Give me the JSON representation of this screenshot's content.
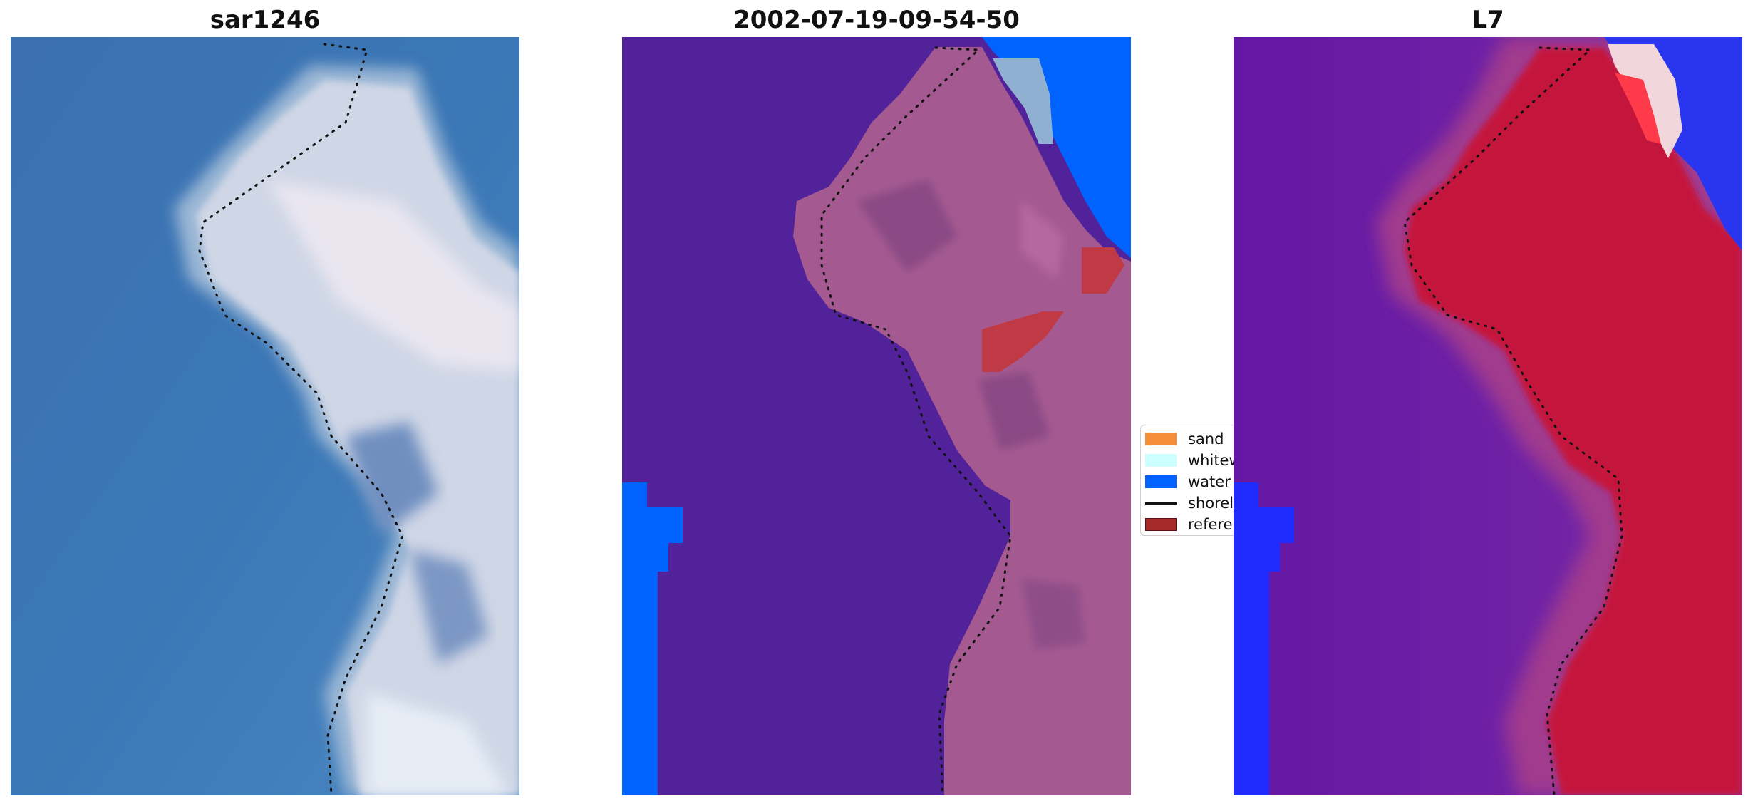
{
  "panels": [
    {
      "title": "sar1246"
    },
    {
      "title": "2002-07-19-09-54-50"
    },
    {
      "title": "L7"
    }
  ],
  "legend": {
    "items": [
      {
        "label": "sand",
        "type": "patch",
        "color": "#f58c37"
      },
      {
        "label": "whitewater",
        "type": "patch",
        "color": "#ccffff"
      },
      {
        "label": "water",
        "type": "patch",
        "color": "#0062ff"
      },
      {
        "label": "shoreline",
        "type": "line",
        "color": "#111111"
      },
      {
        "label": "reference",
        "type": "patch",
        "color": "#a52a2a"
      }
    ]
  },
  "colors": {
    "ocean_rgb": "#3f76b4",
    "land_rgb": "#d7dbe8",
    "classified_background": "#52229a",
    "classified_land": "#a45a91",
    "classified_water": "#0062ff",
    "index_land": "#c4123c",
    "index_water": "#6a1ea6",
    "index_strong_water": "#1f2bff",
    "shoreline": "#111111"
  }
}
